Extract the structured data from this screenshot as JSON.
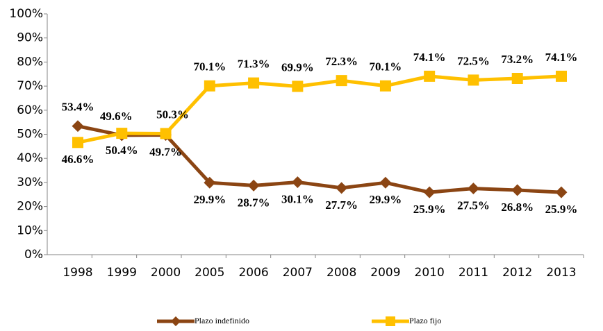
{
  "chart_data": {
    "type": "line",
    "categories": [
      "1998",
      "1999",
      "2000",
      "2005",
      "2006",
      "2007",
      "2008",
      "2009",
      "2010",
      "2011",
      "2012",
      "2013"
    ],
    "series": [
      {
        "name": "Plazo indefinido",
        "color": "#8b4513",
        "values": [
          53.4,
          49.6,
          49.7,
          29.9,
          28.7,
          30.1,
          27.7,
          29.9,
          25.9,
          27.5,
          26.8,
          25.9
        ],
        "value_labels": [
          "53.4%",
          "49.6%",
          "49.7%",
          "29.9%",
          "28.7%",
          "30.1%",
          "27.7%",
          "29.9%",
          "25.9%",
          "27.5%",
          "26.8%",
          "25.9%"
        ]
      },
      {
        "name": "Plazo fijo",
        "color": "#ffc000",
        "values": [
          46.6,
          50.4,
          50.3,
          70.1,
          71.3,
          69.9,
          72.3,
          70.1,
          74.1,
          72.5,
          73.2,
          74.1
        ],
        "value_labels": [
          "46.6%",
          "50.4%",
          "50.3%",
          "70.1%",
          "71.3%",
          "69.9%",
          "72.3%",
          "70.1%",
          "74.1%",
          "72.5%",
          "73.2%",
          "74.1%"
        ]
      }
    ],
    "ylim": [
      0,
      100
    ],
    "yticks": [
      {
        "value": 0,
        "label": "0%"
      },
      {
        "value": 10,
        "label": "10%"
      },
      {
        "value": 20,
        "label": "20%"
      },
      {
        "value": 30,
        "label": "30%"
      },
      {
        "value": 40,
        "label": "40%"
      },
      {
        "value": 50,
        "label": "50%"
      },
      {
        "value": 60,
        "label": "60%"
      },
      {
        "value": 70,
        "label": "70%"
      },
      {
        "value": 80,
        "label": "80%"
      },
      {
        "value": 90,
        "label": "90%"
      },
      {
        "value": 100,
        "label": "100%"
      }
    ],
    "legend": "bottom"
  }
}
